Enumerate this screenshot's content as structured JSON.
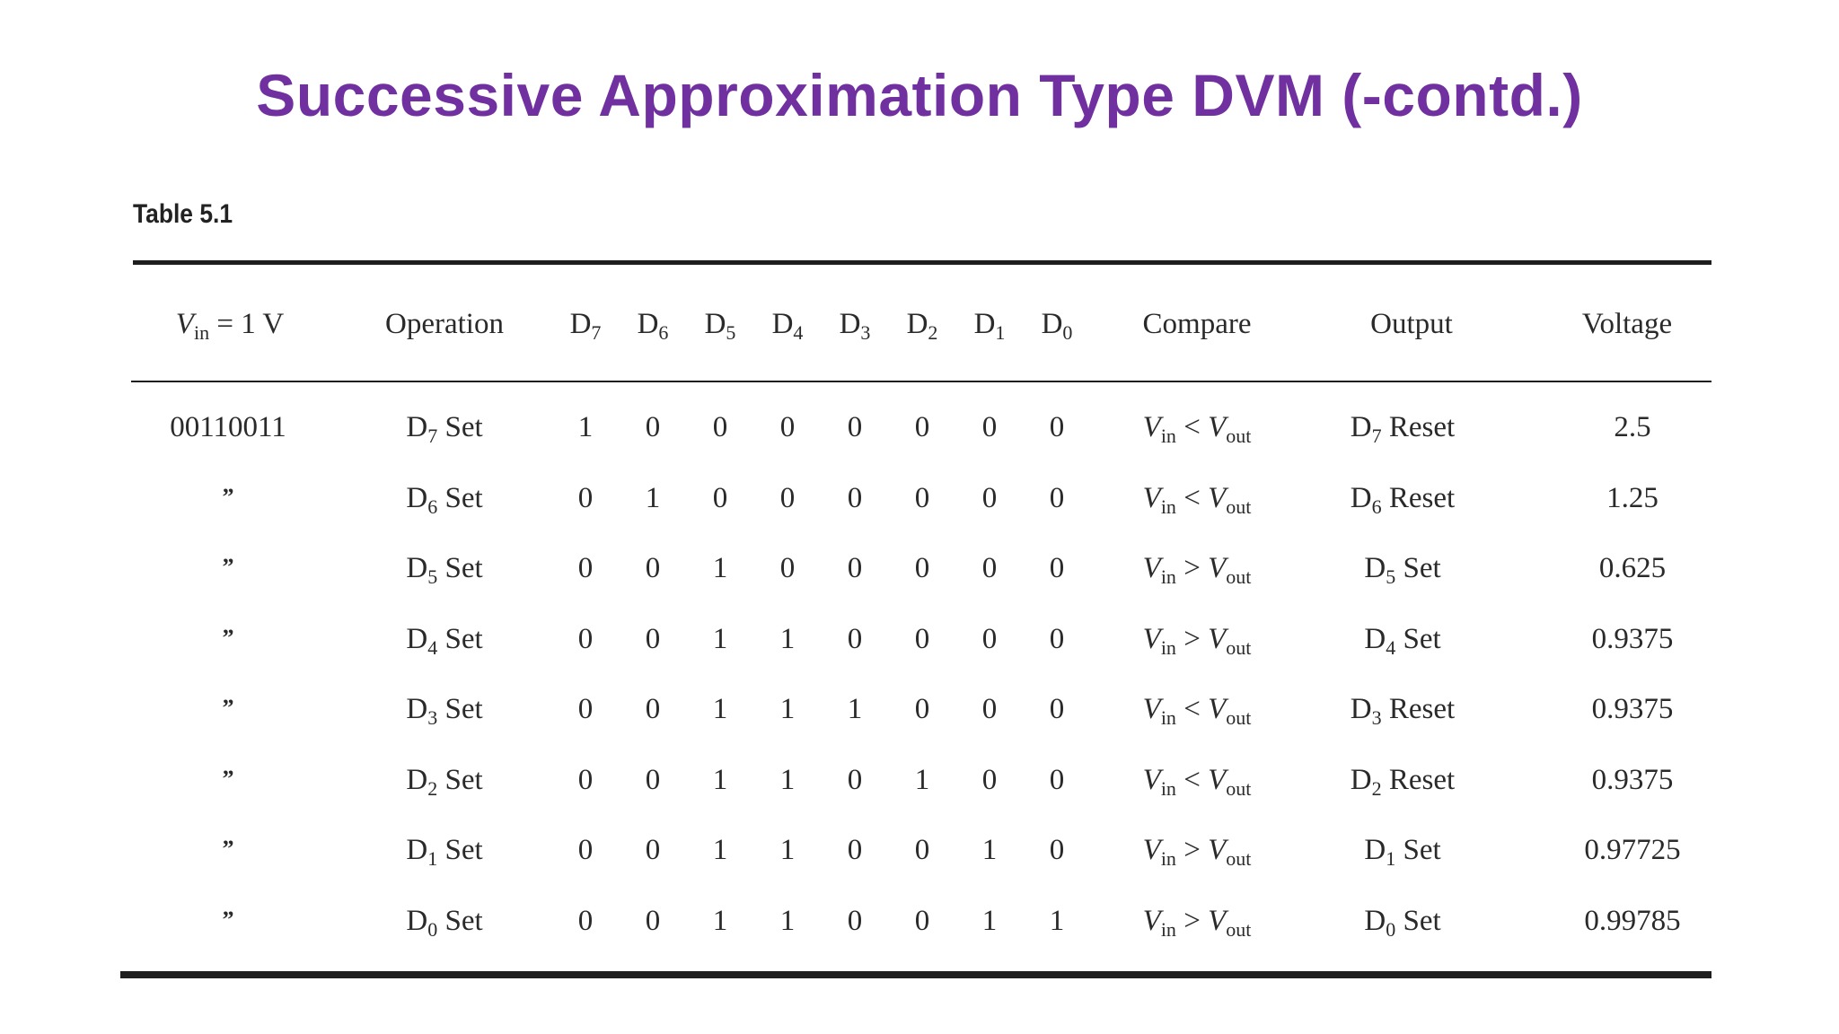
{
  "title": "Successive Approximation Type DVM (-contd.)",
  "table": {
    "caption": "Table 5.1",
    "headers": {
      "vin_label": "V",
      "vin_sub": "in",
      "vin_value": " = 1 V",
      "operation": "Operation",
      "bits": [
        {
          "base": "D",
          "sub": "7"
        },
        {
          "base": "D",
          "sub": "6"
        },
        {
          "base": "D",
          "sub": "5"
        },
        {
          "base": "D",
          "sub": "4"
        },
        {
          "base": "D",
          "sub": "3"
        },
        {
          "base": "D",
          "sub": "2"
        },
        {
          "base": "D",
          "sub": "1"
        },
        {
          "base": "D",
          "sub": "0"
        }
      ],
      "compare": "Compare",
      "output": "Output",
      "voltage": "Voltage"
    },
    "rows": [
      {
        "vin": "00110011",
        "op_d": "D",
        "op_sub": "7",
        "op_word": " Set",
        "bits": [
          "1",
          "0",
          "0",
          "0",
          "0",
          "0",
          "0",
          "0"
        ],
        "cmp_l": "V",
        "cmp_lsub": "in",
        "cmp_op": " < ",
        "cmp_r": "V",
        "cmp_rsub": "out",
        "out_d": "D",
        "out_sub": "7",
        "out_word": " Reset",
        "voltage": "2.5"
      },
      {
        "vin": "”",
        "op_d": "D",
        "op_sub": "6",
        "op_word": " Set",
        "bits": [
          "0",
          "1",
          "0",
          "0",
          "0",
          "0",
          "0",
          "0"
        ],
        "cmp_l": "V",
        "cmp_lsub": "in",
        "cmp_op": " < ",
        "cmp_r": "V",
        "cmp_rsub": "out",
        "out_d": "D",
        "out_sub": "6",
        "out_word": " Reset",
        "voltage": "1.25"
      },
      {
        "vin": "”",
        "op_d": "D",
        "op_sub": "5",
        "op_word": " Set",
        "bits": [
          "0",
          "0",
          "1",
          "0",
          "0",
          "0",
          "0",
          "0"
        ],
        "cmp_l": "V",
        "cmp_lsub": "in",
        "cmp_op": " > ",
        "cmp_r": "V",
        "cmp_rsub": "out",
        "out_d": "D",
        "out_sub": "5",
        "out_word": " Set",
        "voltage": "0.625"
      },
      {
        "vin": "”",
        "op_d": "D",
        "op_sub": "4",
        "op_word": " Set",
        "bits": [
          "0",
          "0",
          "1",
          "1",
          "0",
          "0",
          "0",
          "0"
        ],
        "cmp_l": "V",
        "cmp_lsub": "in",
        "cmp_op": " > ",
        "cmp_r": "V",
        "cmp_rsub": "out",
        "out_d": "D",
        "out_sub": "4",
        "out_word": " Set",
        "voltage": "0.9375"
      },
      {
        "vin": "”",
        "op_d": "D",
        "op_sub": "3",
        "op_word": " Set",
        "bits": [
          "0",
          "0",
          "1",
          "1",
          "1",
          "0",
          "0",
          "0"
        ],
        "cmp_l": "V",
        "cmp_lsub": "in",
        "cmp_op": " < ",
        "cmp_r": "V",
        "cmp_rsub": "out",
        "out_d": "D",
        "out_sub": "3",
        "out_word": " Reset",
        "voltage": "0.9375"
      },
      {
        "vin": "”",
        "op_d": "D",
        "op_sub": "2",
        "op_word": " Set",
        "bits": [
          "0",
          "0",
          "1",
          "1",
          "0",
          "1",
          "0",
          "0"
        ],
        "cmp_l": "V",
        "cmp_lsub": "in",
        "cmp_op": " < ",
        "cmp_r": "V",
        "cmp_rsub": "out",
        "out_d": "D",
        "out_sub": "2",
        "out_word": " Reset",
        "voltage": "0.9375"
      },
      {
        "vin": "”",
        "op_d": "D",
        "op_sub": "1",
        "op_word": " Set",
        "bits": [
          "0",
          "0",
          "1",
          "1",
          "0",
          "0",
          "1",
          "0"
        ],
        "cmp_l": "V",
        "cmp_lsub": "in",
        "cmp_op": " > ",
        "cmp_r": "V",
        "cmp_rsub": "out",
        "out_d": "D",
        "out_sub": "1",
        "out_word": " Set",
        "voltage": "0.97725"
      },
      {
        "vin": "”",
        "op_d": "D",
        "op_sub": "0",
        "op_word": " Set",
        "bits": [
          "0",
          "0",
          "1",
          "1",
          "0",
          "0",
          "1",
          "1"
        ],
        "cmp_l": "V",
        "cmp_lsub": "in",
        "cmp_op": " > ",
        "cmp_r": "V",
        "cmp_rsub": "out",
        "out_d": "D",
        "out_sub": "0",
        "out_word": " Set",
        "voltage": "0.99785"
      }
    ]
  }
}
